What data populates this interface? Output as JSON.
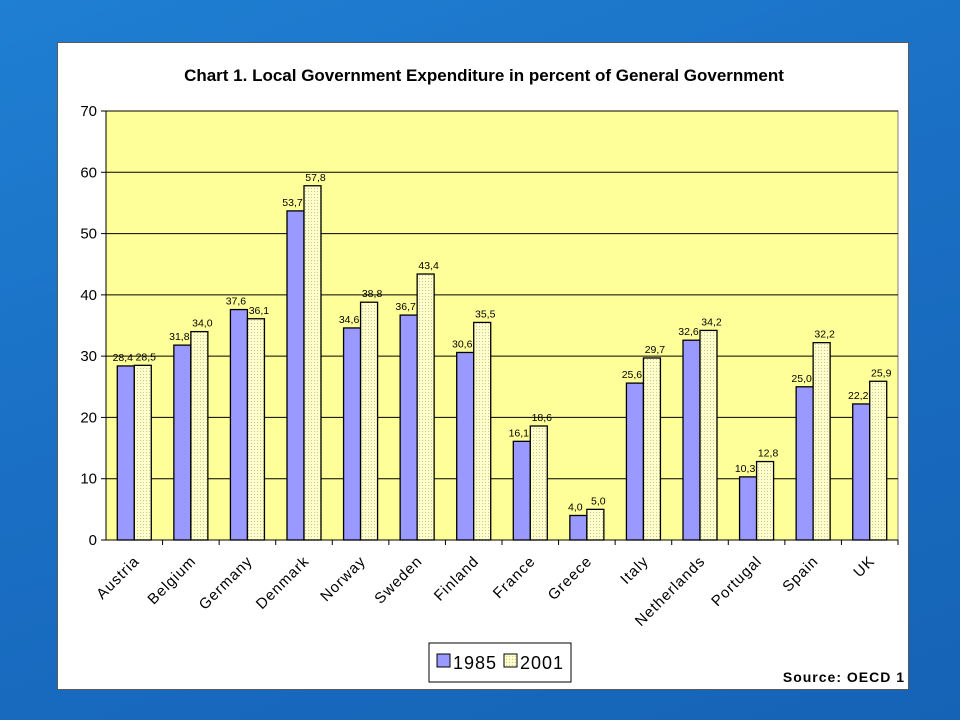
{
  "chart_data": {
    "type": "bar",
    "title": "Chart 1. Local Government Expenditure in percent of General Government",
    "source": "Source: OECD 1",
    "categories": [
      "Austria",
      "Belgium",
      "Germany",
      "Denmark",
      "Norway",
      "Sweden",
      "Finland",
      "France",
      "Greece",
      "Italy",
      "Netherlands",
      "Portugal",
      "Spain",
      "UK"
    ],
    "series": [
      {
        "name": "1985",
        "color": "#9999ff",
        "values": [
          28.4,
          31.8,
          37.6,
          53.7,
          34.6,
          36.7,
          30.6,
          16.1,
          4.0,
          25.6,
          32.6,
          10.3,
          25.0,
          22.2
        ],
        "labels": [
          "28,4",
          "31,8",
          "37,6",
          "53,7",
          "34,6",
          "36,7",
          "30,6",
          "16,1",
          "4,0",
          "25,6",
          "32,6",
          "10,3",
          "25,0",
          "22,2"
        ]
      },
      {
        "name": "2001",
        "color": "#ffffcc",
        "values": [
          28.5,
          34.0,
          36.1,
          57.8,
          38.8,
          43.4,
          35.5,
          18.6,
          5.0,
          29.7,
          34.2,
          12.8,
          32.2,
          25.9
        ],
        "labels": [
          "28,5",
          "34,0",
          "36,1",
          "57,8",
          "38,8",
          "43,4",
          "35,5",
          "18,6",
          "5,0",
          "29,7",
          "34,2",
          "12,8",
          "32,2",
          "25,9"
        ]
      }
    ],
    "ylim": [
      0,
      70
    ],
    "yticks": [
      0,
      10,
      20,
      30,
      40,
      50,
      60,
      70
    ],
    "grid": true,
    "plot_background": "#ffff99",
    "legend_position": "bottom"
  }
}
